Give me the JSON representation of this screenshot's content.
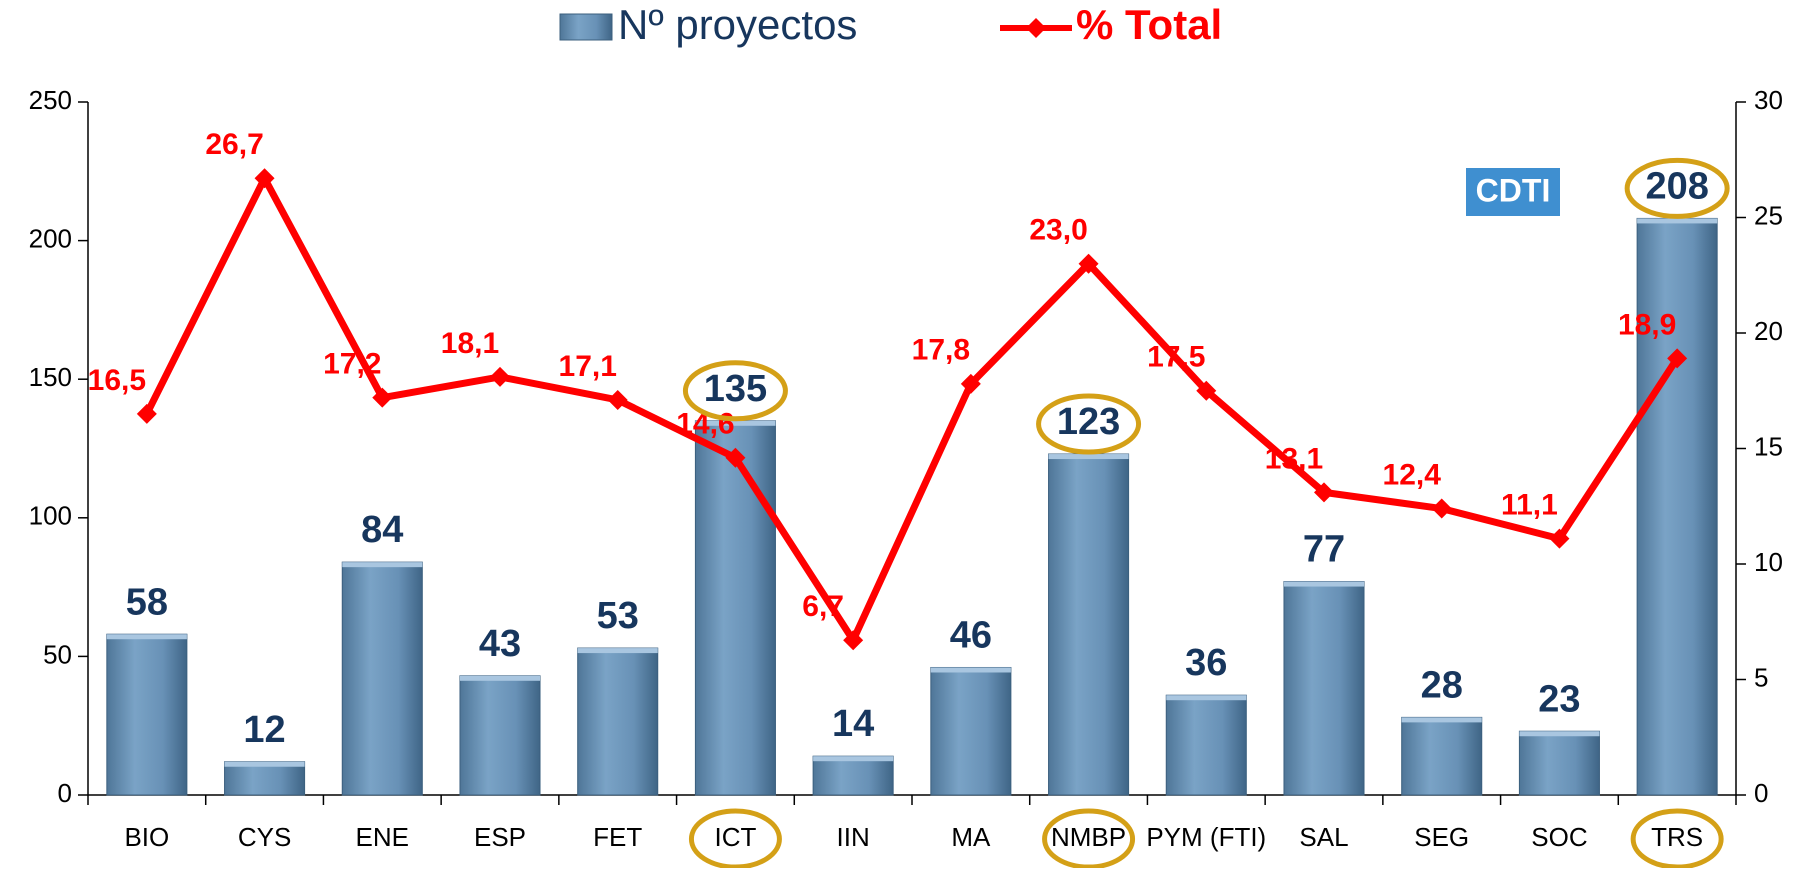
{
  "chart_data": {
    "type": "bar_line",
    "categories": [
      "BIO",
      "CYS",
      "ENE",
      "ESP",
      "FET",
      "ICT",
      "IIN",
      "MA",
      "NMBP",
      "PYM (FTI)",
      "SAL",
      "SEG",
      "SOC",
      "TRS"
    ],
    "series": [
      {
        "name": "Nº proyectos",
        "color": "#6b96bb",
        "type": "bar",
        "values": [
          58,
          12,
          84,
          43,
          53,
          135,
          14,
          46,
          123,
          36,
          77,
          28,
          23,
          208
        ]
      },
      {
        "name": "% Total",
        "color": "#ff0000",
        "type": "line",
        "axis": "y2",
        "values": [
          16.5,
          26.7,
          17.2,
          18.1,
          17.1,
          14.6,
          6.7,
          17.8,
          23.0,
          17.5,
          13.1,
          12.4,
          11.1,
          18.9
        ],
        "value_labels": [
          "16,5",
          "26,7",
          "17,2",
          "18,1",
          "17,1",
          "14,6",
          "6,7",
          "17,8",
          "23,0",
          "17,5",
          "13,1",
          "12,4",
          "11,1",
          "18,9"
        ]
      }
    ],
    "ylim": [
      0,
      250
    ],
    "yticks": [
      0,
      50,
      100,
      150,
      200,
      250
    ],
    "y2lim": [
      0,
      30
    ],
    "y2ticks": [
      0,
      5,
      10,
      15,
      20,
      25,
      30
    ],
    "legend": "top",
    "highlighted_categories": [
      "ICT",
      "NMBP",
      "TRS"
    ],
    "highlight_color": "#d4a017",
    "logo": "CDTI"
  }
}
